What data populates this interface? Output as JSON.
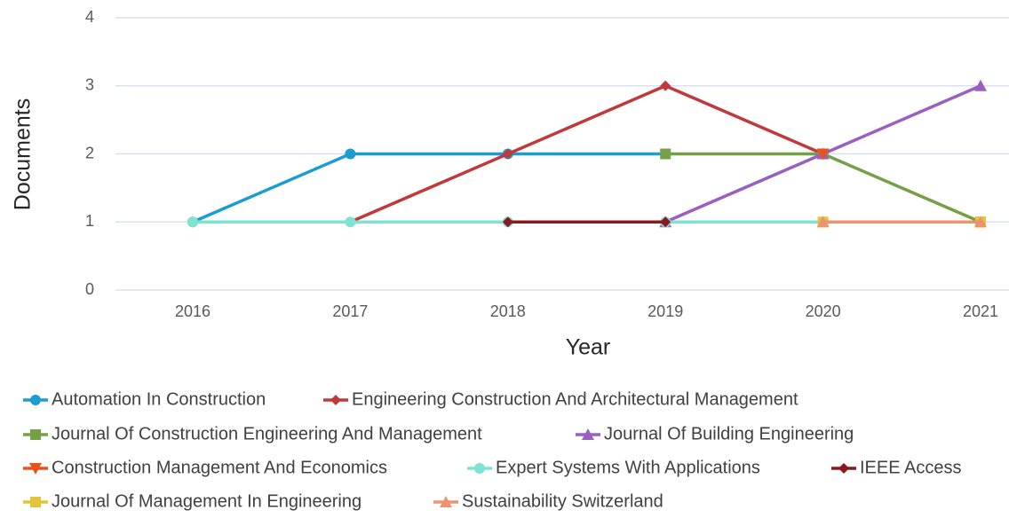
{
  "chart_data": {
    "type": "line",
    "x_label": "Year",
    "y_label": "Documents",
    "categories": [
      "2016",
      "2017",
      "2018",
      "2019",
      "2020",
      "2021"
    ],
    "ylim": [
      0,
      4
    ],
    "yticks": [
      0,
      1,
      2,
      3,
      4
    ],
    "grid": true,
    "legend": "bottom",
    "series": [
      {
        "name": "Automation In Construction",
        "color": "#1b9dd3",
        "marker": "circle",
        "values": [
          1,
          2,
          2,
          2,
          null,
          null
        ]
      },
      {
        "name": "Engineering Construction And Architectural Management",
        "color": "#c0393b",
        "marker": "diamond",
        "values": [
          null,
          1,
          2,
          3,
          2,
          null
        ]
      },
      {
        "name": "Journal Of Construction Engineering And Management",
        "color": "#76a046",
        "marker": "square",
        "values": [
          null,
          null,
          null,
          2,
          2,
          1
        ]
      },
      {
        "name": "Journal Of Building Engineering",
        "color": "#9b5fc0",
        "marker": "triangle",
        "values": [
          null,
          null,
          null,
          1,
          2,
          3
        ]
      },
      {
        "name": "Construction Management And Economics",
        "color": "#e8531c",
        "marker": "triangle-down",
        "values": [
          null,
          null,
          null,
          null,
          2,
          null
        ]
      },
      {
        "name": "Expert Systems With Applications",
        "color": "#7fe3d2",
        "marker": "circle",
        "values": [
          1,
          1,
          1,
          1,
          1,
          null
        ]
      },
      {
        "name": "IEEE Access",
        "color": "#8b1a1f",
        "marker": "diamond",
        "values": [
          null,
          null,
          1,
          1,
          null,
          null
        ]
      },
      {
        "name": "Journal Of Management In Engineering",
        "color": "#e3c43a",
        "marker": "square",
        "values": [
          null,
          null,
          null,
          null,
          1,
          1
        ]
      },
      {
        "name": "Sustainability Switzerland",
        "color": "#eb9470",
        "marker": "triangle",
        "values": [
          null,
          null,
          null,
          null,
          1,
          1
        ]
      }
    ]
  }
}
